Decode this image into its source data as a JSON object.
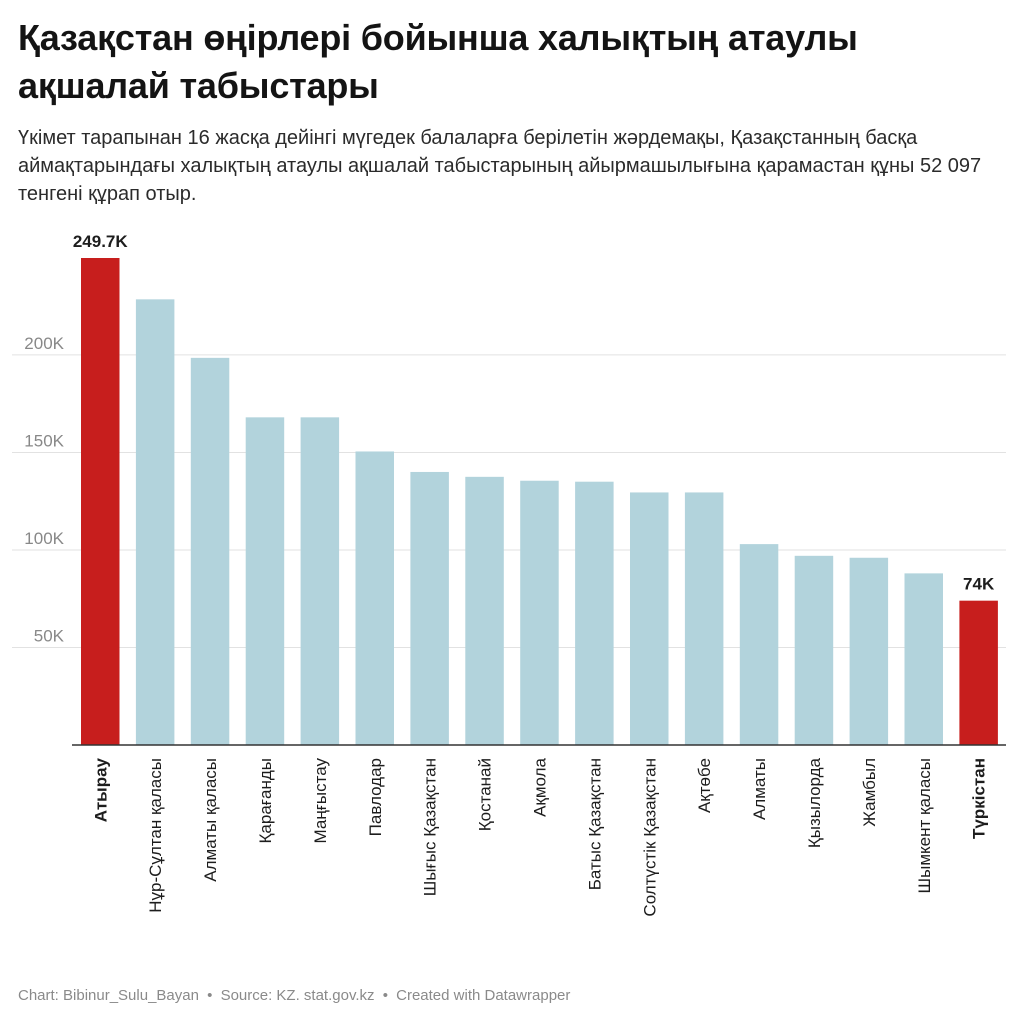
{
  "title": "Қазақстан өңірлері бойынша халықтың атаулы ақшалай табыстары",
  "subtitle": "Үкімет тарапынан 16 жасқа дейінгі мүгедек балаларға берілетін жәрдемақы, Қазақстанның басқа аймақтарындағы халықтың атаулы ақшалай табыстарының айырмашылығына қарамастан құны 52 097 тенгені құрап отыр.",
  "footer": {
    "chart_by": "Chart: Bibinur_Sulu_Bayan",
    "source": "Source: KZ. stat.gov.kz",
    "created": "Created with Datawrapper",
    "separator": "•"
  },
  "colors": {
    "highlight": "#c71e1d",
    "bar": "#b2d3dc",
    "grid": "#e2e2e2",
    "axis": "#333333",
    "tick_label": "#888888"
  },
  "chart_data": {
    "type": "bar",
    "categories": [
      "Атырау",
      "Нұр-Сұлтан қаласы",
      "Алматы қаласы",
      "Қарағанды",
      "Маңғыстау",
      "Павлодар",
      "Шығыс Қазақстан",
      "Қостанай",
      "Ақмола",
      "Батыс Қазақстан",
      "Солтүстік Қазақстан",
      "Ақтөбе",
      "Алматы",
      "Қызылорда",
      "Жамбыл",
      "Шымкент қаласы",
      "Түркістан"
    ],
    "values": [
      249700,
      228500,
      198500,
      168000,
      168000,
      150500,
      140000,
      137500,
      135500,
      135000,
      129500,
      129500,
      103000,
      97000,
      96000,
      88000,
      74000
    ],
    "highlighted": [
      0,
      16
    ],
    "data_labels": {
      "0": "249.7K",
      "16": "74K"
    },
    "y_ticks": [
      50000,
      100000,
      150000,
      200000
    ],
    "y_tick_labels": [
      "50K",
      "100K",
      "150K",
      "200K"
    ],
    "ylim": [
      0,
      249700
    ],
    "grid": true,
    "xlabel": "",
    "ylabel": ""
  }
}
